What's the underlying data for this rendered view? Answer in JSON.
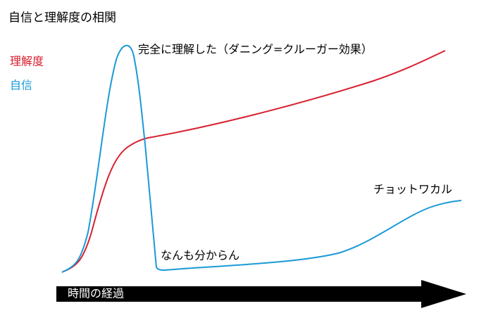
{
  "title": "自信と理解度の相関",
  "legend": {
    "understanding": "理解度",
    "confidence": "自信"
  },
  "annotations": {
    "peak": "完全に理解した（ダニング=クルーガー効果）",
    "plateau": "チョットワカル",
    "valley": "なんも分からん"
  },
  "x_axis": {
    "label": "時間の経過"
  }
}
